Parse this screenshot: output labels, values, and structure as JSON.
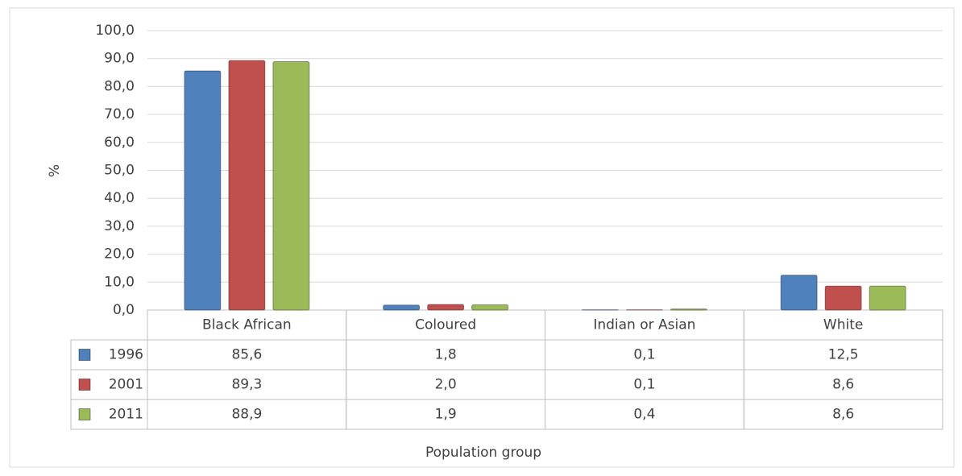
{
  "chart_data": {
    "type": "bar",
    "y_label": "%",
    "x_label": "Population group",
    "categories": [
      "Black African",
      "Coloured",
      "Indian or Asian",
      "White"
    ],
    "series": [
      {
        "name": "1996",
        "color": "#4f81bd",
        "values": [
          85.6,
          1.8,
          0.1,
          12.5
        ],
        "value_labels": [
          "85,6",
          "1,8",
          "0,1",
          "12,5"
        ]
      },
      {
        "name": "2001",
        "color": "#c0504d",
        "values": [
          89.3,
          2.0,
          0.1,
          8.6
        ],
        "value_labels": [
          "89,3",
          "2,0",
          "0,1",
          "8,6"
        ]
      },
      {
        "name": "2011",
        "color": "#9bbb59",
        "values": [
          88.9,
          1.9,
          0.4,
          8.6
        ],
        "value_labels": [
          "88,9",
          "1,9",
          "0,4",
          "8,6"
        ]
      }
    ],
    "ylim": [
      0,
      100
    ],
    "yticks": [
      {
        "value": 0,
        "label": "0,0"
      },
      {
        "value": 10,
        "label": "10,0"
      },
      {
        "value": 20,
        "label": "20,0"
      },
      {
        "value": 30,
        "label": "30,0"
      },
      {
        "value": 40,
        "label": "40,0"
      },
      {
        "value": 50,
        "label": "50,0"
      },
      {
        "value": 60,
        "label": "60,0"
      },
      {
        "value": 70,
        "label": "70,0"
      },
      {
        "value": 80,
        "label": "80,0"
      },
      {
        "value": 90,
        "label": "90,0"
      },
      {
        "value": 100,
        "label": "100,0"
      }
    ],
    "grid": true
  }
}
